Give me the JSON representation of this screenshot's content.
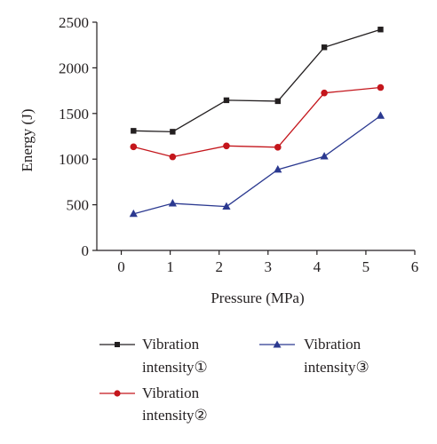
{
  "chart_data": {
    "type": "line",
    "title": "",
    "xlabel": "Pressure (MPa)",
    "ylabel": "Energy (J)",
    "xlim": [
      -0.5,
      6
    ],
    "ylim": [
      0,
      2500
    ],
    "x_ticks": [
      0,
      1,
      2,
      3,
      4,
      5,
      6
    ],
    "y_ticks": [
      0,
      500,
      1000,
      1500,
      2000,
      2500
    ],
    "grid": false,
    "legend_position": "below",
    "series": [
      {
        "name": "Vibration intensity①",
        "label_line1": "Vibration",
        "label_line2": "intensity①",
        "color": "#231f20",
        "marker": "square",
        "x": [
          0.25,
          1.05,
          2.15,
          3.2,
          4.15,
          5.3
        ],
        "y": [
          1310,
          1300,
          1645,
          1635,
          2225,
          2420
        ]
      },
      {
        "name": "Vibration intensity②",
        "label_line1": "Vibration",
        "label_line2": "intensity②",
        "color": "#c4161c",
        "marker": "circle",
        "x": [
          0.25,
          1.05,
          2.15,
          3.2,
          4.15,
          5.3
        ],
        "y": [
          1135,
          1025,
          1145,
          1130,
          1725,
          1785
        ]
      },
      {
        "name": "Vibration intensity③",
        "label_line1": "Vibration",
        "label_line2": "intensity③",
        "color": "#2b3990",
        "marker": "triangle",
        "x": [
          0.25,
          1.05,
          2.15,
          3.2,
          4.15,
          5.3
        ],
        "y": [
          400,
          515,
          480,
          885,
          1030,
          1475
        ]
      }
    ]
  }
}
